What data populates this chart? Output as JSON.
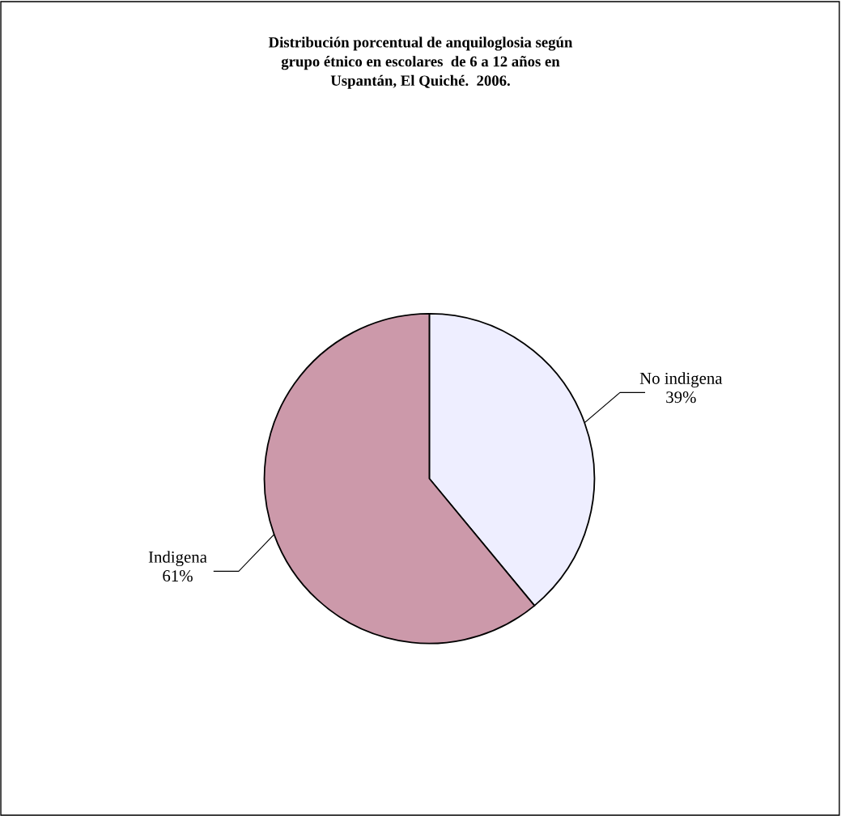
{
  "chart_data": {
    "type": "pie",
    "title": "Distribución porcentual de anquiloglosia según\ngrupo étnico en escolares  de 6 a 12 años en\nUspantán, El Quiché.  2006.",
    "categories": [
      "No indigena",
      "Indigena"
    ],
    "values": [
      39,
      61
    ],
    "value_labels": [
      "39%",
      "61%"
    ],
    "colors": [
      "#eeeeff",
      "#cc99aa"
    ],
    "legend": false
  }
}
